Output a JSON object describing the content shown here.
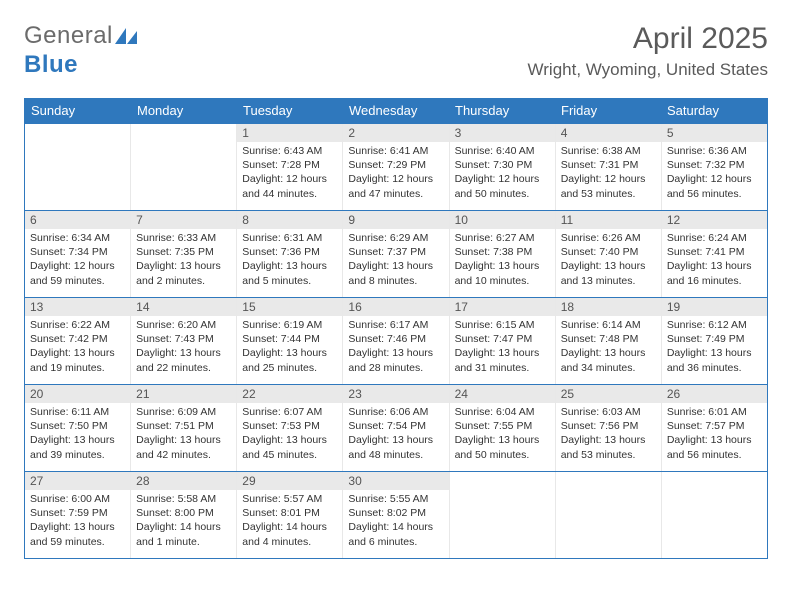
{
  "logo": {
    "word1": "General",
    "word2": "Blue"
  },
  "title": "April 2025",
  "location": "Wright, Wyoming, United States",
  "colors": {
    "accent": "#2f78bd",
    "header_bg": "#2f78bd",
    "daynum_bg": "#e9e9e9"
  },
  "daysOfWeek": [
    "Sunday",
    "Monday",
    "Tuesday",
    "Wednesday",
    "Thursday",
    "Friday",
    "Saturday"
  ],
  "weeks": [
    [
      {
        "n": "",
        "empty": true
      },
      {
        "n": "",
        "empty": true
      },
      {
        "n": "1",
        "sr": "Sunrise: 6:43 AM",
        "ss": "Sunset: 7:28 PM",
        "dl": "Daylight: 12 hours and 44 minutes."
      },
      {
        "n": "2",
        "sr": "Sunrise: 6:41 AM",
        "ss": "Sunset: 7:29 PM",
        "dl": "Daylight: 12 hours and 47 minutes."
      },
      {
        "n": "3",
        "sr": "Sunrise: 6:40 AM",
        "ss": "Sunset: 7:30 PM",
        "dl": "Daylight: 12 hours and 50 minutes."
      },
      {
        "n": "4",
        "sr": "Sunrise: 6:38 AM",
        "ss": "Sunset: 7:31 PM",
        "dl": "Daylight: 12 hours and 53 minutes."
      },
      {
        "n": "5",
        "sr": "Sunrise: 6:36 AM",
        "ss": "Sunset: 7:32 PM",
        "dl": "Daylight: 12 hours and 56 minutes."
      }
    ],
    [
      {
        "n": "6",
        "sr": "Sunrise: 6:34 AM",
        "ss": "Sunset: 7:34 PM",
        "dl": "Daylight: 12 hours and 59 minutes."
      },
      {
        "n": "7",
        "sr": "Sunrise: 6:33 AM",
        "ss": "Sunset: 7:35 PM",
        "dl": "Daylight: 13 hours and 2 minutes."
      },
      {
        "n": "8",
        "sr": "Sunrise: 6:31 AM",
        "ss": "Sunset: 7:36 PM",
        "dl": "Daylight: 13 hours and 5 minutes."
      },
      {
        "n": "9",
        "sr": "Sunrise: 6:29 AM",
        "ss": "Sunset: 7:37 PM",
        "dl": "Daylight: 13 hours and 8 minutes."
      },
      {
        "n": "10",
        "sr": "Sunrise: 6:27 AM",
        "ss": "Sunset: 7:38 PM",
        "dl": "Daylight: 13 hours and 10 minutes."
      },
      {
        "n": "11",
        "sr": "Sunrise: 6:26 AM",
        "ss": "Sunset: 7:40 PM",
        "dl": "Daylight: 13 hours and 13 minutes."
      },
      {
        "n": "12",
        "sr": "Sunrise: 6:24 AM",
        "ss": "Sunset: 7:41 PM",
        "dl": "Daylight: 13 hours and 16 minutes."
      }
    ],
    [
      {
        "n": "13",
        "sr": "Sunrise: 6:22 AM",
        "ss": "Sunset: 7:42 PM",
        "dl": "Daylight: 13 hours and 19 minutes."
      },
      {
        "n": "14",
        "sr": "Sunrise: 6:20 AM",
        "ss": "Sunset: 7:43 PM",
        "dl": "Daylight: 13 hours and 22 minutes."
      },
      {
        "n": "15",
        "sr": "Sunrise: 6:19 AM",
        "ss": "Sunset: 7:44 PM",
        "dl": "Daylight: 13 hours and 25 minutes."
      },
      {
        "n": "16",
        "sr": "Sunrise: 6:17 AM",
        "ss": "Sunset: 7:46 PM",
        "dl": "Daylight: 13 hours and 28 minutes."
      },
      {
        "n": "17",
        "sr": "Sunrise: 6:15 AM",
        "ss": "Sunset: 7:47 PM",
        "dl": "Daylight: 13 hours and 31 minutes."
      },
      {
        "n": "18",
        "sr": "Sunrise: 6:14 AM",
        "ss": "Sunset: 7:48 PM",
        "dl": "Daylight: 13 hours and 34 minutes."
      },
      {
        "n": "19",
        "sr": "Sunrise: 6:12 AM",
        "ss": "Sunset: 7:49 PM",
        "dl": "Daylight: 13 hours and 36 minutes."
      }
    ],
    [
      {
        "n": "20",
        "sr": "Sunrise: 6:11 AM",
        "ss": "Sunset: 7:50 PM",
        "dl": "Daylight: 13 hours and 39 minutes."
      },
      {
        "n": "21",
        "sr": "Sunrise: 6:09 AM",
        "ss": "Sunset: 7:51 PM",
        "dl": "Daylight: 13 hours and 42 minutes."
      },
      {
        "n": "22",
        "sr": "Sunrise: 6:07 AM",
        "ss": "Sunset: 7:53 PM",
        "dl": "Daylight: 13 hours and 45 minutes."
      },
      {
        "n": "23",
        "sr": "Sunrise: 6:06 AM",
        "ss": "Sunset: 7:54 PM",
        "dl": "Daylight: 13 hours and 48 minutes."
      },
      {
        "n": "24",
        "sr": "Sunrise: 6:04 AM",
        "ss": "Sunset: 7:55 PM",
        "dl": "Daylight: 13 hours and 50 minutes."
      },
      {
        "n": "25",
        "sr": "Sunrise: 6:03 AM",
        "ss": "Sunset: 7:56 PM",
        "dl": "Daylight: 13 hours and 53 minutes."
      },
      {
        "n": "26",
        "sr": "Sunrise: 6:01 AM",
        "ss": "Sunset: 7:57 PM",
        "dl": "Daylight: 13 hours and 56 minutes."
      }
    ],
    [
      {
        "n": "27",
        "sr": "Sunrise: 6:00 AM",
        "ss": "Sunset: 7:59 PM",
        "dl": "Daylight: 13 hours and 59 minutes."
      },
      {
        "n": "28",
        "sr": "Sunrise: 5:58 AM",
        "ss": "Sunset: 8:00 PM",
        "dl": "Daylight: 14 hours and 1 minute."
      },
      {
        "n": "29",
        "sr": "Sunrise: 5:57 AM",
        "ss": "Sunset: 8:01 PM",
        "dl": "Daylight: 14 hours and 4 minutes."
      },
      {
        "n": "30",
        "sr": "Sunrise: 5:55 AM",
        "ss": "Sunset: 8:02 PM",
        "dl": "Daylight: 14 hours and 6 minutes."
      },
      {
        "n": "",
        "empty": true
      },
      {
        "n": "",
        "empty": true
      },
      {
        "n": "",
        "empty": true
      }
    ]
  ]
}
